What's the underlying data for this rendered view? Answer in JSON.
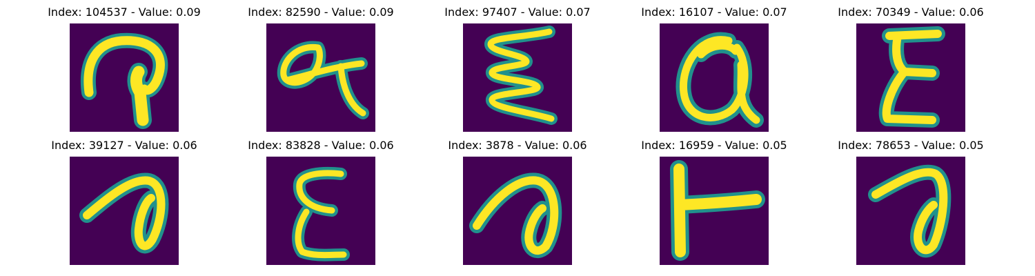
{
  "colors": {
    "background": "#440154",
    "stroke_core": "#fde725",
    "stroke_edge": "#21918c",
    "stroke_mid": "#5ec962"
  },
  "panels": [
    {
      "title": "Index: 104537 - Value: 0.09"
    },
    {
      "title": "Index: 82590 - Value: 0.09"
    },
    {
      "title": "Index: 97407 - Value: 0.07"
    },
    {
      "title": "Index: 16107 - Value: 0.07"
    },
    {
      "title": "Index: 70349 - Value: 0.06"
    },
    {
      "title": "Index: 39127 - Value: 0.06"
    },
    {
      "title": "Index: 83828 - Value: 0.06"
    },
    {
      "title": "Index: 3878 - Value: 0.06"
    },
    {
      "title": "Index: 16959 - Value: 0.05"
    },
    {
      "title": "Index: 78653 - Value: 0.05"
    }
  ]
}
